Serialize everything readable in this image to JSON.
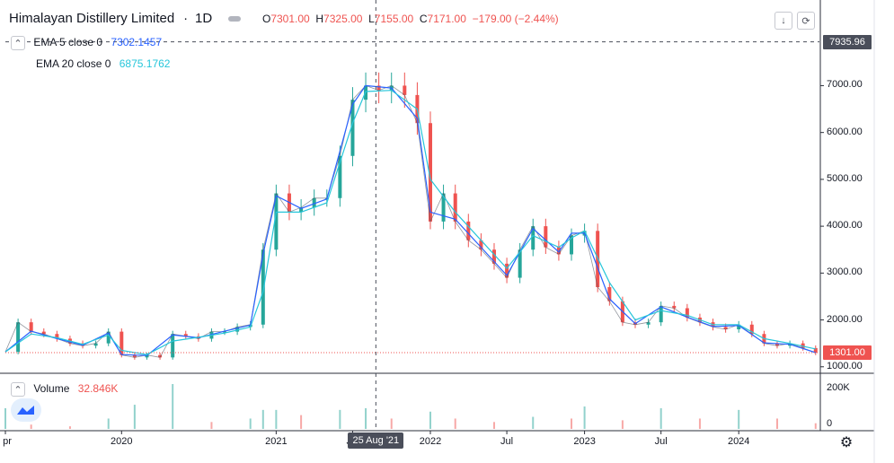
{
  "header": {
    "symbol": "Himalayan Distillery Limited",
    "interval": "1D",
    "ohlc": {
      "o_label": "O",
      "o": "7301.00",
      "h_label": "H",
      "h": "7325.00",
      "l_label": "L",
      "l": "7155.00",
      "c_label": "C",
      "c": "7171.00",
      "change": "−179.00 (−2.44%)"
    }
  },
  "indicators": {
    "ema5": {
      "label": "EMA 5 close 0",
      "value": "7302.1457",
      "color": "#2962ff"
    },
    "ema20": {
      "label": "EMA 20 close 0",
      "value": "6875.1762",
      "color": "#26c6da"
    }
  },
  "volume_pane": {
    "label": "Volume",
    "value": "32.846K",
    "ticks": [
      "200K",
      "0"
    ]
  },
  "price_tags": {
    "crosshair": "7935.96",
    "last": "1301.00"
  },
  "crosshair_date": "25 Aug '21",
  "colors": {
    "up": "#26a69a",
    "down": "#ef5350",
    "ema5": "#2962ff",
    "ema20": "#26c6da",
    "last_line": "#ef5350"
  },
  "icons": [
    "chevron-up-icon",
    "arrow-down-icon",
    "refresh-icon",
    "collapse-icon",
    "gear-icon"
  ],
  "chart_data": {
    "type": "line",
    "title": "Himalayan Distillery Limited · 1D",
    "xlabel": "",
    "ylabel": "",
    "ylim": [
      900,
      8100
    ],
    "y_ticks": [
      1000,
      2000,
      3000,
      4000,
      5000,
      6000,
      7000
    ],
    "y_tick_labels": [
      "1000.00",
      "2000.00",
      "3000.00",
      "4000.00",
      "5000.00",
      "6000.00",
      "7000.00"
    ],
    "x_ticks": [
      {
        "label": "pr",
        "date": "2019-04-01"
      },
      {
        "label": "2020",
        "date": "2020-01-01"
      },
      {
        "label": "2021",
        "date": "2021-01-01"
      },
      {
        "label": "Jul",
        "date": "2021-07-01"
      },
      {
        "label": "2022",
        "date": "2022-01-01"
      },
      {
        "label": "Jul",
        "date": "2022-07-01"
      },
      {
        "label": "2023",
        "date": "2023-01-01"
      },
      {
        "label": "Jul",
        "date": "2023-07-01"
      },
      {
        "label": "2024",
        "date": "2024-01-01"
      }
    ],
    "xlim": [
      "2019-04-01",
      "2024-07-10"
    ],
    "crosshair": {
      "date": "2021-08-25",
      "price": 7935.96
    },
    "last_price": 1301.0,
    "series": [
      {
        "name": "Close",
        "x": [
          "2019-04-01",
          "2019-05-01",
          "2019-06-01",
          "2019-07-01",
          "2019-08-01",
          "2019-09-01",
          "2019-10-01",
          "2019-11-01",
          "2019-12-01",
          "2020-01-01",
          "2020-02-01",
          "2020-03-01",
          "2020-04-01",
          "2020-05-01",
          "2020-06-01",
          "2020-07-01",
          "2020-08-01",
          "2020-09-01",
          "2020-10-01",
          "2020-11-01",
          "2020-12-01",
          "2021-01-01",
          "2021-02-01",
          "2021-03-01",
          "2021-04-01",
          "2021-05-01",
          "2021-06-01",
          "2021-07-01",
          "2021-08-01",
          "2021-09-01",
          "2021-10-01",
          "2021-11-01",
          "2021-12-01",
          "2022-01-01",
          "2022-02-01",
          "2022-03-01",
          "2022-04-01",
          "2022-05-01",
          "2022-06-01",
          "2022-07-01",
          "2022-08-01",
          "2022-09-01",
          "2022-10-01",
          "2022-11-01",
          "2022-12-01",
          "2023-01-01",
          "2023-02-01",
          "2023-03-01",
          "2023-04-01",
          "2023-05-01",
          "2023-06-01",
          "2023-07-01",
          "2023-08-01",
          "2023-09-01",
          "2023-10-01",
          "2023-11-01",
          "2023-12-01",
          "2024-01-01",
          "2024-02-01",
          "2024-03-01",
          "2024-04-01",
          "2024-05-01",
          "2024-06-01",
          "2024-07-01"
        ],
        "y": [
          1320,
          1950,
          1750,
          1700,
          1600,
          1500,
          1450,
          1500,
          1750,
          1250,
          1200,
          1250,
          1200,
          1700,
          1650,
          1600,
          1750,
          1750,
          1850,
          1900,
          3500,
          4700,
          4300,
          4400,
          4600,
          4600,
          5500,
          6700,
          7000,
          6900,
          7000,
          6800,
          6200,
          4100,
          4700,
          4100,
          3700,
          3500,
          3200,
          2900,
          3500,
          4000,
          3550,
          3400,
          3800,
          3900,
          2700,
          2400,
          1950,
          1900,
          1950,
          2300,
          2250,
          2050,
          1950,
          1850,
          1800,
          1900,
          1700,
          1500,
          1450,
          1500,
          1400,
          1301
        ]
      },
      {
        "name": "EMA 5",
        "x": [
          "2019-04-01",
          "2019-06-01",
          "2019-08-01",
          "2019-10-01",
          "2019-12-01",
          "2020-01-01",
          "2020-03-01",
          "2020-05-01",
          "2020-07-01",
          "2020-09-01",
          "2020-11-01",
          "2020-12-01",
          "2021-01-01",
          "2021-03-01",
          "2021-05-01",
          "2021-07-01",
          "2021-08-01",
          "2021-10-01",
          "2021-12-01",
          "2022-01-01",
          "2022-03-01",
          "2022-05-01",
          "2022-07-01",
          "2022-09-01",
          "2022-11-01",
          "2022-12-01",
          "2023-01-01",
          "2023-03-01",
          "2023-05-01",
          "2023-07-01",
          "2023-09-01",
          "2023-11-01",
          "2024-01-01",
          "2024-03-01",
          "2024-05-01",
          "2024-07-01"
        ],
        "y": [
          1320,
          1760,
          1600,
          1460,
          1720,
          1260,
          1240,
          1680,
          1620,
          1760,
          1890,
          3400,
          4650,
          4380,
          4580,
          6600,
          7000,
          6950,
          6300,
          4300,
          4150,
          3550,
          2950,
          3950,
          3450,
          3850,
          3850,
          2450,
          1920,
          2280,
          2060,
          1860,
          1880,
          1510,
          1480,
          1302
        ]
      },
      {
        "name": "EMA 20",
        "x": [
          "2019-04-01",
          "2019-06-01",
          "2019-08-01",
          "2019-10-01",
          "2019-12-01",
          "2020-01-01",
          "2020-03-01",
          "2020-05-01",
          "2020-07-01",
          "2020-09-01",
          "2020-11-01",
          "2020-12-01",
          "2021-01-01",
          "2021-03-01",
          "2021-05-01",
          "2021-07-01",
          "2021-08-01",
          "2021-10-01",
          "2021-12-01",
          "2022-01-01",
          "2022-03-01",
          "2022-05-01",
          "2022-07-01",
          "2022-09-01",
          "2022-11-01",
          "2022-12-01",
          "2023-01-01",
          "2023-03-01",
          "2023-05-01",
          "2023-07-01",
          "2023-09-01",
          "2023-11-01",
          "2024-01-01",
          "2024-03-01",
          "2024-05-01",
          "2024-07-01"
        ],
        "y": [
          1320,
          1700,
          1620,
          1480,
          1680,
          1350,
          1260,
          1550,
          1630,
          1720,
          1850,
          2600,
          4300,
          4300,
          4500,
          6200,
          6875,
          6900,
          6500,
          5000,
          4300,
          3700,
          3100,
          3800,
          3550,
          3750,
          3900,
          2800,
          2000,
          2200,
          2100,
          1900,
          1900,
          1600,
          1500,
          1380
        ]
      }
    ],
    "volume": {
      "x": [
        "2019-04-01",
        "2019-06-01",
        "2019-09-01",
        "2019-12-01",
        "2020-02-01",
        "2020-05-01",
        "2020-08-01",
        "2020-11-01",
        "2020-12-01",
        "2021-01-01",
        "2021-03-01",
        "2021-06-01",
        "2021-08-01",
        "2021-10-01",
        "2022-01-01",
        "2022-03-01",
        "2022-06-01",
        "2022-09-01",
        "2022-12-01",
        "2023-01-01",
        "2023-04-01",
        "2023-07-01",
        "2023-10-01",
        "2024-01-01",
        "2024-04-01",
        "2024-07-01"
      ],
      "values": [
        120000,
        25000,
        15000,
        60000,
        140000,
        260000,
        40000,
        60000,
        110000,
        110000,
        80000,
        110000,
        120000,
        60000,
        100000,
        60000,
        40000,
        70000,
        60000,
        130000,
        50000,
        120000,
        60000,
        110000,
        60000,
        32846
      ],
      "ylim": [
        0,
        260000
      ]
    }
  }
}
